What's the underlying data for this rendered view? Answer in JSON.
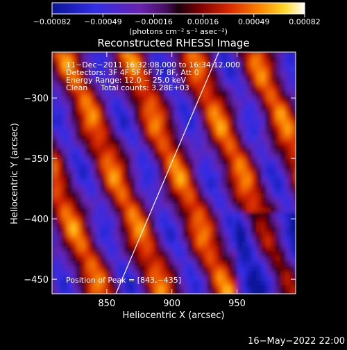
{
  "chart_data": {
    "type": "heatmap",
    "title": "Reconstructed RHESSI Image",
    "xlabel": "Heliocentric X (arcsec)",
    "ylabel": "Heliocentric Y (arcsec)",
    "xlim": [
      808,
      995
    ],
    "ylim": [
      -462,
      -262
    ],
    "xticks": [
      850,
      900,
      950
    ],
    "xtick_labels": [
      "850",
      "900",
      "950"
    ],
    "yticks": [
      -300,
      -350,
      -400,
      -450
    ],
    "ytick_labels": [
      "−300",
      "−350",
      "−400",
      "−450"
    ],
    "colorbar": {
      "min": -0.00082,
      "max": 0.00082,
      "ticks": [
        -0.00082,
        -0.00049,
        -0.00016,
        0.00016,
        0.00049,
        0.00082
      ],
      "tick_labels": [
        "−0.00082",
        "−0.00049",
        "−0.00016",
        "0.00016",
        "0.00049",
        "0.00082"
      ],
      "unit_label": "(photons cm⁻² s⁻¹ asec⁻²)"
    },
    "annotations": [
      "11−Dec−2011 16:32:08.000 to 16:34:12.000",
      "Detectors: 3F 4F 5F 6F 7F 8F, Att 0",
      "Energy Range: 12.0 − 25.0 keV",
      "Clean",
      "Total counts: 3.28E+03"
    ],
    "peak_label": "Position of Peak = [843,−435]",
    "peak": [
      843,
      -435
    ],
    "limb_line": [
      [
        857,
        -462
      ],
      [
        936,
        -262
      ]
    ]
  },
  "footer": {
    "date": "16−May−2022 22:00"
  }
}
